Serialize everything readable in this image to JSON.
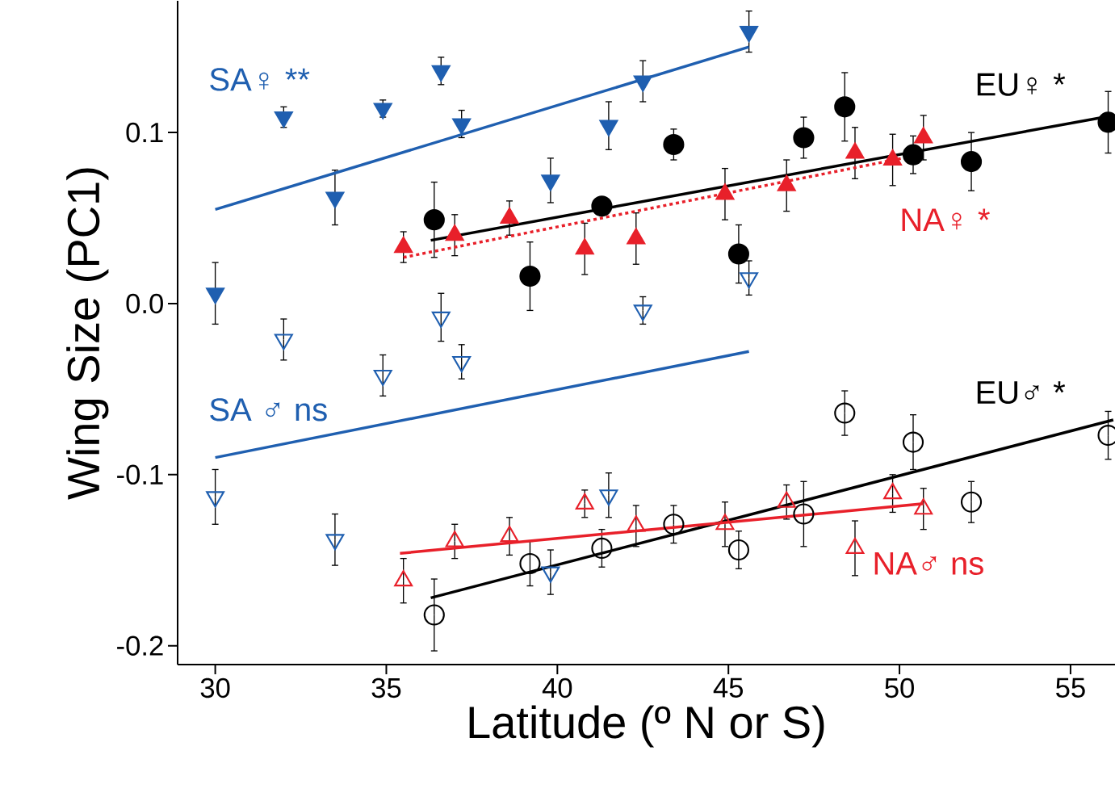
{
  "chart_data": {
    "type": "scatter",
    "xlabel": "Latitude (º N or S)",
    "ylabel": "Wing Size (PC1)",
    "xlim": [
      28.9,
      56.3
    ],
    "ylim": [
      -0.211,
      0.177
    ],
    "xticks": [
      30,
      35,
      40,
      45,
      50,
      55
    ],
    "yticks": [
      {
        "value": -0.2,
        "label": "-0.2"
      },
      {
        "value": -0.1,
        "label": "-0.1"
      },
      {
        "value": 0,
        "label": "0.0"
      },
      {
        "value": 0.1,
        "label": "0.1"
      }
    ],
    "series": [
      {
        "name": "SA♀ **",
        "color": "#1f5fb0",
        "marker": "triangle-down",
        "x": [
          30.0,
          32.0,
          33.5,
          34.9,
          36.6,
          37.2,
          39.8,
          41.5,
          42.5,
          45.6
        ],
        "values": [
          0.006,
          0.109,
          0.062,
          0.114,
          0.136,
          0.105,
          0.072,
          0.104,
          0.13,
          0.159
        ],
        "errors": [
          0.018,
          0.006,
          0.016,
          0.005,
          0.008,
          0.008,
          0.013,
          0.014,
          0.012,
          0.012
        ]
      },
      {
        "name": "SA ♂ ns",
        "color": "#1f5fb0",
        "marker": "triangle-down-open",
        "x": [
          30.0,
          32.0,
          33.5,
          34.9,
          36.6,
          37.2,
          39.8,
          41.5,
          42.5,
          45.6
        ],
        "values": [
          -0.113,
          -0.021,
          -0.138,
          -0.042,
          -0.008,
          -0.034,
          -0.157,
          -0.112,
          -0.004,
          0.015
        ],
        "errors": [
          0.016,
          0.012,
          0.015,
          0.012,
          0.014,
          0.01,
          0.013,
          0.013,
          0.008,
          0.01
        ]
      },
      {
        "name": "EU♀ *",
        "color": "#000000",
        "marker": "circle",
        "x": [
          36.4,
          39.2,
          41.3,
          43.4,
          45.3,
          47.2,
          48.4,
          50.4,
          52.1,
          56.1
        ],
        "values": [
          0.049,
          0.016,
          0.057,
          0.093,
          0.029,
          0.097,
          0.115,
          0.087,
          0.083,
          0.106
        ],
        "errors": [
          0.022,
          0.02,
          0.005,
          0.009,
          0.017,
          0.012,
          0.02,
          0.011,
          0.017,
          0.018
        ]
      },
      {
        "name": "NA♀ *",
        "color": "#e8202a",
        "marker": "triangle",
        "x": [
          35.5,
          37.0,
          38.6,
          40.8,
          42.3,
          44.9,
          46.7,
          48.7,
          49.8,
          50.7
        ],
        "values": [
          0.033,
          0.04,
          0.05,
          0.032,
          0.038,
          0.064,
          0.069,
          0.088,
          0.084,
          0.097
        ],
        "errors": [
          0.009,
          0.012,
          0.01,
          0.015,
          0.015,
          0.015,
          0.015,
          0.015,
          0.015,
          0.013
        ]
      },
      {
        "name": "EU♂ *",
        "color": "#000000",
        "marker": "circle-open",
        "x": [
          36.4,
          39.2,
          41.3,
          43.4,
          45.3,
          47.2,
          48.4,
          50.4,
          52.1,
          56.1
        ],
        "values": [
          -0.182,
          -0.152,
          -0.143,
          -0.129,
          -0.144,
          -0.123,
          -0.064,
          -0.081,
          -0.116,
          -0.077
        ],
        "errors": [
          0.021,
          0.013,
          0.011,
          0.011,
          0.011,
          0.019,
          0.013,
          0.016,
          0.012,
          0.014
        ]
      },
      {
        "name": "NA♂ ns",
        "color": "#e8202a",
        "marker": "triangle-open",
        "x": [
          35.5,
          37.0,
          38.6,
          40.8,
          42.3,
          44.9,
          46.7,
          48.7,
          49.8,
          50.7
        ],
        "values": [
          -0.162,
          -0.139,
          -0.136,
          -0.117,
          -0.13,
          -0.129,
          -0.116,
          -0.143,
          -0.111,
          -0.12
        ],
        "errors": [
          0.013,
          0.01,
          0.011,
          0.008,
          0.012,
          0.013,
          0.01,
          0.016,
          0.011,
          0.012
        ]
      },
      {
        "type": "line",
        "color": "#1f5fb0",
        "line_style": "solid",
        "x": [
          30.0,
          45.6
        ],
        "values": [
          0.055,
          0.15
        ]
      },
      {
        "type": "line",
        "color": "#1f5fb0",
        "line_style": "solid",
        "x": [
          30.0,
          45.6
        ],
        "values": [
          -0.09,
          -0.028
        ]
      },
      {
        "type": "line",
        "color": "#000000",
        "line_style": "solid",
        "x": [
          36.3,
          56.25
        ],
        "values": [
          0.037,
          0.11
        ]
      },
      {
        "type": "line",
        "color": "#e8202a",
        "line_style": "dashed",
        "x": [
          35.5,
          50.1
        ],
        "values": [
          0.027,
          0.085
        ]
      },
      {
        "type": "line",
        "color": "#000000",
        "line_style": "solid",
        "x": [
          36.3,
          56.25
        ],
        "values": [
          -0.172,
          -0.068
        ]
      },
      {
        "type": "line",
        "color": "#e8202a",
        "line_style": "solid",
        "x": [
          35.4,
          50.7
        ],
        "values": [
          -0.146,
          -0.117
        ]
      }
    ]
  }
}
